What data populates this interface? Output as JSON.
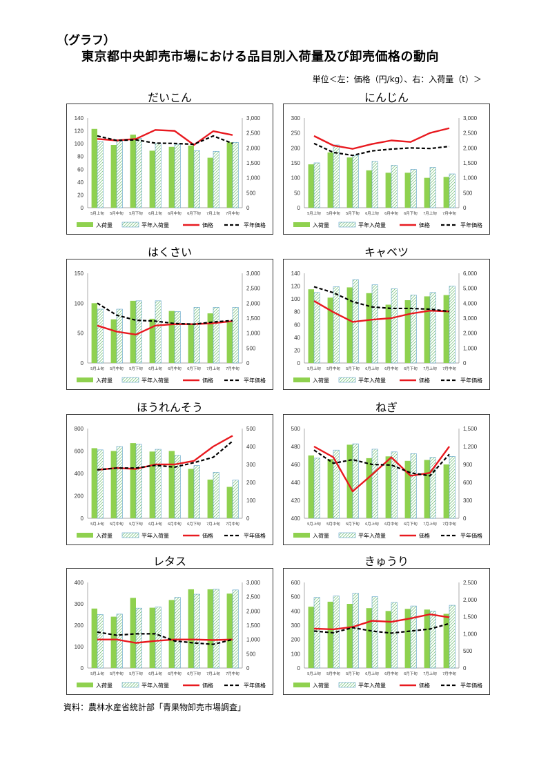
{
  "header": {
    "label": "（グラフ）",
    "title": "東京都中央卸売市場における品目別入荷量及び卸売価格の動向",
    "unit": "単位＜左：価格（円/kg）、右：入荷量（t）＞"
  },
  "source": "資料：農林水産省統計部「青果物卸売市場調査」",
  "colors": {
    "bar": "#8fd14f",
    "bar_avg_stroke": "#5aa0c8",
    "bar_avg_hatch": "#4caf50",
    "price": "#e8191f",
    "avg_price": "#000000",
    "grid": "#d9d9d9"
  },
  "legend": {
    "volume": "入荷量",
    "avg_volume": "平年入荷量",
    "price": "価格",
    "avg_price": "平年価格"
  },
  "chart_data": [
    {
      "type": "bar",
      "title": "だいこん",
      "categories": [
        "5月上旬",
        "5月中旬",
        "5月下旬",
        "6月上旬",
        "6月中旬",
        "6月下旬",
        "7月上旬",
        "7月中旬"
      ],
      "left_axis": {
        "ylim": [
          0,
          140
        ],
        "ticks": [
          0,
          20,
          40,
          60,
          80,
          100,
          120,
          140
        ]
      },
      "right_axis": {
        "ylim": [
          0,
          3000
        ],
        "ticks": [
          "0",
          "500",
          "1,000",
          "1,500",
          "2,000",
          "2,500",
          "3,000"
        ]
      },
      "series": [
        {
          "name": "入荷量",
          "axis": "left",
          "values": [
            123,
            98,
            114,
            89,
            95,
            97,
            78,
            102
          ]
        },
        {
          "name": "平年入荷量",
          "axis": "left",
          "values": [
            103,
            104,
            108,
            100,
            99,
            89,
            88,
            102
          ]
        },
        {
          "name": "価格",
          "axis": "right",
          "values": [
            2300,
            2250,
            2300,
            2600,
            2570,
            2100,
            2560,
            2430
          ]
        },
        {
          "name": "平年価格",
          "axis": "right",
          "values": [
            2400,
            2250,
            2270,
            2160,
            2150,
            2120,
            2400,
            2150
          ]
        }
      ]
    },
    {
      "type": "bar",
      "title": "にんじん",
      "categories": [
        "5月上旬",
        "5月中旬",
        "5月下旬",
        "6月上旬",
        "6月中旬",
        "6月下旬",
        "7月上旬",
        "7月中旬"
      ],
      "left_axis": {
        "ylim": [
          0,
          300
        ],
        "ticks": [
          0,
          50,
          100,
          150,
          200,
          250,
          300
        ]
      },
      "right_axis": {
        "ylim": [
          0,
          3000
        ],
        "ticks": [
          "0",
          "500",
          "1,000",
          "1,500",
          "2,000",
          "2,500",
          "3,000"
        ]
      },
      "series": [
        {
          "name": "入荷量",
          "axis": "left",
          "values": [
            145,
            185,
            168,
            125,
            117,
            117,
            100,
            103
          ]
        },
        {
          "name": "平年入荷量",
          "axis": "left",
          "values": [
            150,
            210,
            175,
            155,
            142,
            128,
            135,
            113
          ]
        },
        {
          "name": "価格",
          "axis": "right",
          "values": [
            2400,
            2080,
            1970,
            2130,
            2250,
            2200,
            2500,
            2660
          ]
        },
        {
          "name": "平年価格",
          "axis": "right",
          "values": [
            2150,
            1850,
            1750,
            1900,
            1960,
            2000,
            1980,
            2050
          ]
        }
      ]
    },
    {
      "type": "bar",
      "title": "はくさい",
      "categories": [
        "5月上旬",
        "5月中旬",
        "5月下旬",
        "6月上旬",
        "6月中旬",
        "6月下旬",
        "7月上旬",
        "7月中旬"
      ],
      "left_axis": {
        "ylim": [
          0,
          150
        ],
        "ticks": [
          0,
          50,
          100,
          150
        ]
      },
      "right_axis": {
        "ylim": [
          0,
          3000
        ],
        "ticks": [
          "0",
          "500",
          "1,000",
          "1,500",
          "2,000",
          "2,500",
          "3,000"
        ]
      },
      "series": [
        {
          "name": "入荷量",
          "axis": "left",
          "values": [
            100,
            73,
            104,
            74,
            87,
            66,
            83,
            68
          ]
        },
        {
          "name": "平年入荷量",
          "axis": "left",
          "values": [
            90,
            90,
            104,
            104,
            86,
            93,
            93,
            93
          ]
        },
        {
          "name": "価格",
          "axis": "right",
          "values": [
            1250,
            1050,
            950,
            1250,
            1300,
            1300,
            1330,
            1400
          ]
        },
        {
          "name": "平年価格",
          "axis": "right",
          "values": [
            2000,
            1600,
            1430,
            1400,
            1320,
            1300,
            1370,
            1420
          ]
        }
      ]
    },
    {
      "type": "bar",
      "title": "キャベツ",
      "categories": [
        "5月上旬",
        "5月中旬",
        "5月下旬",
        "6月上旬",
        "6月中旬",
        "6月下旬",
        "7月上旬",
        "7月中旬"
      ],
      "left_axis": {
        "ylim": [
          0,
          140
        ],
        "ticks": [
          0,
          20,
          40,
          60,
          80,
          100,
          120,
          140
        ]
      },
      "right_axis": {
        "ylim": [
          0,
          6000
        ],
        "ticks": [
          "0",
          "1,000",
          "2,000",
          "3,000",
          "4,000",
          "5,000",
          "6,000"
        ]
      },
      "series": [
        {
          "name": "入荷量",
          "axis": "left",
          "values": [
            115,
            102,
            118,
            109,
            91,
            98,
            104,
            106
          ]
        },
        {
          "name": "平年入荷量",
          "axis": "left",
          "values": [
            110,
            119,
            130,
            122,
            116,
            106,
            110,
            120
          ]
        },
        {
          "name": "価格",
          "axis": "right",
          "values": [
            4150,
            3400,
            2750,
            2900,
            3000,
            3300,
            3500,
            3450
          ]
        },
        {
          "name": "平年価格",
          "axis": "right",
          "values": [
            5100,
            4700,
            4100,
            3750,
            3650,
            3650,
            3600,
            3450
          ]
        }
      ]
    },
    {
      "type": "bar",
      "title": "ほうれんそう",
      "categories": [
        "5月上旬",
        "5月中旬",
        "5月下旬",
        "6月上旬",
        "6月中旬",
        "6月下旬",
        "7月上旬",
        "7月中旬"
      ],
      "left_axis": {
        "ylim": [
          0,
          800
        ],
        "ticks": [
          0,
          200,
          400,
          600,
          800
        ]
      },
      "right_axis": {
        "ylim": [
          0,
          500
        ],
        "ticks": [
          "0",
          "100",
          "200",
          "300",
          "400",
          "500"
        ]
      },
      "series": [
        {
          "name": "入荷量",
          "axis": "left",
          "values": [
            625,
            600,
            670,
            595,
            600,
            440,
            345,
            280
          ]
        },
        {
          "name": "平年入荷量",
          "axis": "left",
          "values": [
            610,
            640,
            660,
            615,
            560,
            470,
            410,
            340
          ]
        },
        {
          "name": "価格",
          "axis": "right",
          "values": [
            270,
            280,
            275,
            300,
            300,
            320,
            400,
            460
          ]
        },
        {
          "name": "平年価格",
          "axis": "right",
          "values": [
            270,
            280,
            280,
            295,
            285,
            310,
            340,
            430
          ]
        }
      ]
    },
    {
      "type": "bar",
      "title": "ねぎ",
      "categories": [
        "5月上旬",
        "5月中旬",
        "5月下旬",
        "6月上旬",
        "6月中旬",
        "6月下旬",
        "7月上旬",
        "7月中旬"
      ],
      "left_axis": {
        "ylim": [
          400,
          500
        ],
        "ticks": [
          400,
          420,
          440,
          460,
          480,
          500
        ]
      },
      "right_axis": {
        "ylim": [
          0,
          1500
        ],
        "ticks": [
          "0",
          "300",
          "600",
          "900",
          "1,200",
          "1,500"
        ]
      },
      "series": [
        {
          "name": "入荷量",
          "axis": "left",
          "values": [
            470,
            466,
            482,
            467,
            469,
            464,
            465,
            460
          ]
        },
        {
          "name": "平年入荷量",
          "axis": "left",
          "values": [
            467,
            476,
            483,
            477,
            474,
            472,
            468,
            469
          ]
        },
        {
          "name": "価格",
          "axis": "right",
          "values": [
            1200,
            1020,
            450,
            730,
            1020,
            710,
            760,
            1200
          ]
        },
        {
          "name": "平年価格",
          "axis": "right",
          "values": [
            1140,
            920,
            980,
            900,
            890,
            760,
            710,
            1070
          ]
        }
      ]
    },
    {
      "type": "bar",
      "title": "レタス",
      "categories": [
        "5月上旬",
        "5月中旬",
        "5月下旬",
        "6月上旬",
        "6月中旬",
        "6月下旬",
        "7月上旬",
        "7月中旬"
      ],
      "left_axis": {
        "ylim": [
          0,
          400
        ],
        "ticks": [
          0,
          100,
          200,
          300,
          400
        ]
      },
      "right_axis": {
        "ylim": [
          0,
          3000
        ],
        "ticks": [
          "0",
          "500",
          "1,000",
          "1,500",
          "2,000",
          "2,500",
          "3,000"
        ]
      },
      "series": [
        {
          "name": "入荷量",
          "axis": "left",
          "values": [
            278,
            240,
            328,
            282,
            318,
            368,
            368,
            348
          ]
        },
        {
          "name": "平年入荷量",
          "axis": "left",
          "values": [
            250,
            252,
            280,
            285,
            330,
            345,
            368,
            365
          ]
        },
        {
          "name": "価格",
          "axis": "right",
          "values": [
            1000,
            1000,
            880,
            950,
            1000,
            1000,
            980,
            1000
          ]
        },
        {
          "name": "平年価格",
          "axis": "right",
          "values": [
            1260,
            1150,
            1200,
            1200,
            950,
            880,
            830,
            1000
          ]
        }
      ]
    },
    {
      "type": "bar",
      "title": "きゅうり",
      "categories": [
        "5月上旬",
        "5月中旬",
        "5月下旬",
        "6月上旬",
        "6月中旬",
        "6月下旬",
        "7月上旬",
        "7月中旬"
      ],
      "left_axis": {
        "ylim": [
          0,
          600
        ],
        "ticks": [
          0,
          100,
          200,
          300,
          400,
          500,
          600
        ]
      },
      "right_axis": {
        "ylim": [
          0,
          2500
        ],
        "ticks": [
          "0",
          "500",
          "1,000",
          "1,500",
          "2,000",
          "2,500"
        ]
      },
      "series": [
        {
          "name": "入荷量",
          "axis": "left",
          "values": [
            430,
            465,
            450,
            420,
            400,
            415,
            410,
            380
          ]
        },
        {
          "name": "平年入荷量",
          "axis": "left",
          "values": [
            495,
            505,
            525,
            500,
            460,
            435,
            400,
            440
          ]
        },
        {
          "name": "価格",
          "axis": "right",
          "values": [
            1150,
            1130,
            1200,
            1380,
            1350,
            1450,
            1570,
            1480
          ]
        },
        {
          "name": "平年価格",
          "axis": "right",
          "values": [
            1080,
            1030,
            1180,
            1080,
            1020,
            1080,
            1140,
            1300
          ]
        }
      ]
    }
  ]
}
